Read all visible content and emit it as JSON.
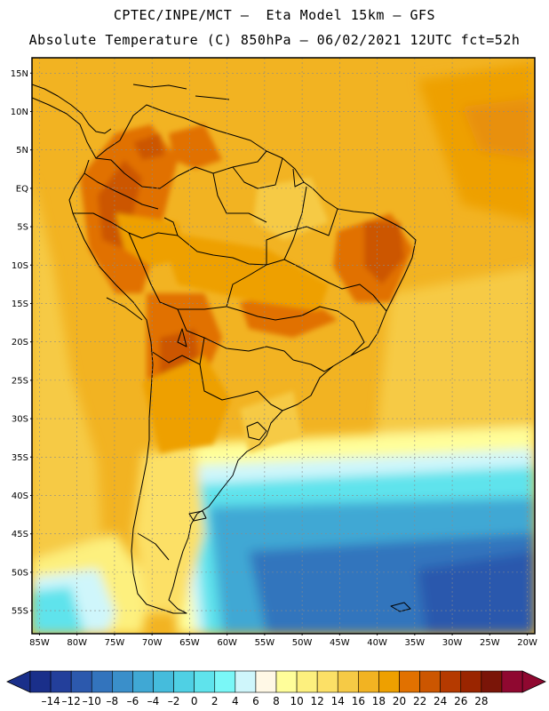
{
  "header": {
    "line1": "CPTEC/INPE/MCT –  Eta Model 15km – GFS",
    "line2": "Absolute Temperature (C) 850hPa – 06/02/2021 12UTC fct=52h"
  },
  "map": {
    "lon_range": [
      -86,
      -19
    ],
    "lat_range": [
      -58,
      17
    ],
    "lat_labels": [
      "15N",
      "10N",
      "5N",
      "EQ",
      "5S",
      "10S",
      "15S",
      "20S",
      "25S",
      "30S",
      "35S",
      "40S",
      "45S",
      "50S",
      "55S"
    ],
    "lat_values": [
      15,
      10,
      5,
      0,
      -5,
      -10,
      -15,
      -20,
      -25,
      -30,
      -35,
      -40,
      -45,
      -50,
      -55
    ],
    "lon_labels": [
      "85W",
      "80W",
      "75W",
      "70W",
      "65W",
      "60W",
      "55W",
      "50W",
      "45W",
      "40W",
      "35W",
      "30W",
      "25W",
      "20W"
    ],
    "lon_values": [
      -85,
      -80,
      -75,
      -70,
      -65,
      -60,
      -55,
      -50,
      -45,
      -40,
      -35,
      -30,
      -25,
      -20
    ],
    "gridlines": true
  },
  "colorbar": {
    "labels": [
      "-14",
      "-12",
      "-10",
      "-8",
      "-6",
      "-4",
      "-2",
      "0",
      "2",
      "4",
      "6",
      "8",
      "10",
      "12",
      "14",
      "16",
      "18",
      "20",
      "22",
      "24",
      "26",
      "28"
    ],
    "colors": [
      "#1a2f8a",
      "#233f9b",
      "#2c59ad",
      "#3374bd",
      "#3a8fca",
      "#40a8d4",
      "#45bcdc",
      "#4fd0e4",
      "#5fe3ec",
      "#7af7f7",
      "#cff6fb",
      "#fff8e6",
      "#fffe9a",
      "#fdf07e",
      "#fce066",
      "#f6ca45",
      "#f2b322",
      "#eea000",
      "#e17100",
      "#cc5600",
      "#b53a00",
      "#9a2500",
      "#7a1508",
      "#8f0830"
    ],
    "under_color": "#1a2f8a",
    "over_color": "#8f0830"
  }
}
